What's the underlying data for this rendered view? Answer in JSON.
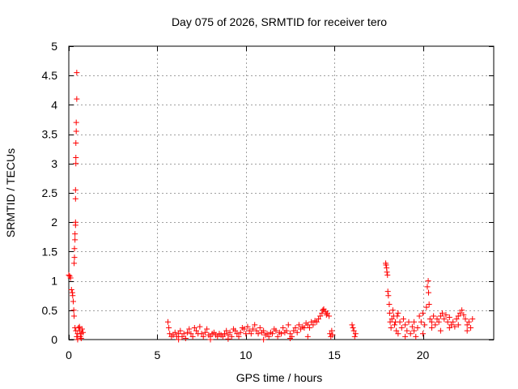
{
  "chart_data": {
    "type": "scatter",
    "title": "Day 075 of 2026, SRMTID for receiver tero",
    "xlabel": "GPS time / hours",
    "ylabel": "SRMTID / TECUs",
    "xlim": [
      0,
      24
    ],
    "ylim": [
      0,
      5
    ],
    "grid": true,
    "marker": "plus",
    "color": "#ff0000",
    "x_ticks": [
      0,
      5,
      10,
      15,
      20
    ],
    "x_tick_labels": [
      "0",
      "5",
      "10",
      "15",
      "20"
    ],
    "y_ticks": [
      0,
      0.5,
      1,
      1.5,
      2,
      2.5,
      3,
      3.5,
      4,
      4.5,
      5
    ],
    "y_tick_labels": [
      "0",
      "0.5",
      "1",
      "1.5",
      "2",
      "2.5",
      "3",
      "3.5",
      "4",
      "4.5",
      "5"
    ],
    "series": [
      {
        "name": "SRMTID",
        "points": [
          [
            0.0,
            1.1
          ],
          [
            0.05,
            1.08
          ],
          [
            0.1,
            1.05
          ],
          [
            0.15,
            0.85
          ],
          [
            0.2,
            0.8
          ],
          [
            0.22,
            0.75
          ],
          [
            0.25,
            0.65
          ],
          [
            0.28,
            0.5
          ],
          [
            0.3,
            0.4
          ],
          [
            0.3,
            1.3
          ],
          [
            0.32,
            1.4
          ],
          [
            0.32,
            1.55
          ],
          [
            0.35,
            1.7
          ],
          [
            0.35,
            1.8
          ],
          [
            0.38,
            1.95
          ],
          [
            0.38,
            2.0
          ],
          [
            0.38,
            2.4
          ],
          [
            0.38,
            2.55
          ],
          [
            0.4,
            3.0
          ],
          [
            0.4,
            3.1
          ],
          [
            0.4,
            3.35
          ],
          [
            0.42,
            3.55
          ],
          [
            0.42,
            3.7
          ],
          [
            0.45,
            4.1
          ],
          [
            0.45,
            4.55
          ],
          [
            0.35,
            0.2
          ],
          [
            0.4,
            0.15
          ],
          [
            0.45,
            0.05
          ],
          [
            0.5,
            0.1
          ],
          [
            0.55,
            0.2
          ],
          [
            0.6,
            0.22
          ],
          [
            0.62,
            0.15
          ],
          [
            0.65,
            0.05
          ],
          [
            0.7,
            0.1
          ],
          [
            0.75,
            0.18
          ],
          [
            0.8,
            0.12
          ],
          [
            0.5,
            0.0
          ],
          [
            0.7,
            0.02
          ],
          [
            5.6,
            0.3
          ],
          [
            5.65,
            0.2
          ],
          [
            5.7,
            0.1
          ],
          [
            5.8,
            0.05
          ],
          [
            5.9,
            0.08
          ],
          [
            6.0,
            0.12
          ],
          [
            6.1,
            0.05
          ],
          [
            6.2,
            0.1
          ],
          [
            6.3,
            0.15
          ],
          [
            6.4,
            0.05
          ],
          [
            6.5,
            0.1
          ],
          [
            6.6,
            0.02
          ],
          [
            6.7,
            0.12
          ],
          [
            6.8,
            0.18
          ],
          [
            6.9,
            0.1
          ],
          [
            7.0,
            0.05
          ],
          [
            7.1,
            0.2
          ],
          [
            7.2,
            0.15
          ],
          [
            7.3,
            0.1
          ],
          [
            7.4,
            0.22
          ],
          [
            7.5,
            0.1
          ],
          [
            7.6,
            0.05
          ],
          [
            7.7,
            0.12
          ],
          [
            7.8,
            0.18
          ],
          [
            7.9,
            0.08
          ],
          [
            8.0,
            0.05
          ],
          [
            8.1,
            0.1
          ],
          [
            8.2,
            0.12
          ],
          [
            8.3,
            0.08
          ],
          [
            8.4,
            0.05
          ],
          [
            8.5,
            0.1
          ],
          [
            8.6,
            0.08
          ],
          [
            8.7,
            0.05
          ],
          [
            8.8,
            0.1
          ],
          [
            8.9,
            0.15
          ],
          [
            9.0,
            0.08
          ],
          [
            9.1,
            0.12
          ],
          [
            9.2,
            0.05
          ],
          [
            9.3,
            0.18
          ],
          [
            9.4,
            0.15
          ],
          [
            9.5,
            0.1
          ],
          [
            9.6,
            0.05
          ],
          [
            9.7,
            0.12
          ],
          [
            9.8,
            0.2
          ],
          [
            9.9,
            0.18
          ],
          [
            10.0,
            0.1
          ],
          [
            10.1,
            0.22
          ],
          [
            10.2,
            0.15
          ],
          [
            10.3,
            0.1
          ],
          [
            10.4,
            0.18
          ],
          [
            10.5,
            0.25
          ],
          [
            10.6,
            0.15
          ],
          [
            10.7,
            0.1
          ],
          [
            10.8,
            0.2
          ],
          [
            10.9,
            0.12
          ],
          [
            11.0,
            0.15
          ],
          [
            11.1,
            0.08
          ],
          [
            11.2,
            0.1
          ],
          [
            11.3,
            0.05
          ],
          [
            11.4,
            0.12
          ],
          [
            11.5,
            0.1
          ],
          [
            11.6,
            0.18
          ],
          [
            11.7,
            0.15
          ],
          [
            11.8,
            0.05
          ],
          [
            11.9,
            0.12
          ],
          [
            12.0,
            0.1
          ],
          [
            12.1,
            0.2
          ],
          [
            12.2,
            0.12
          ],
          [
            12.3,
            0.15
          ],
          [
            12.4,
            0.25
          ],
          [
            12.5,
            0.1
          ],
          [
            12.6,
            0.05
          ],
          [
            12.7,
            0.15
          ],
          [
            12.8,
            0.2
          ],
          [
            12.9,
            0.12
          ],
          [
            13.0,
            0.25
          ],
          [
            13.1,
            0.18
          ],
          [
            13.2,
            0.22
          ],
          [
            13.3,
            0.2
          ],
          [
            13.4,
            0.28
          ],
          [
            13.5,
            0.25
          ],
          [
            13.6,
            0.2
          ],
          [
            13.7,
            0.3
          ],
          [
            13.8,
            0.25
          ],
          [
            13.9,
            0.32
          ],
          [
            14.0,
            0.3
          ],
          [
            14.1,
            0.35
          ],
          [
            14.2,
            0.4
          ],
          [
            14.3,
            0.45
          ],
          [
            14.35,
            0.5
          ],
          [
            14.4,
            0.52
          ],
          [
            14.5,
            0.48
          ],
          [
            14.55,
            0.42
          ],
          [
            14.6,
            0.45
          ],
          [
            14.7,
            0.4
          ],
          [
            14.75,
            0.1
          ],
          [
            14.8,
            0.05
          ],
          [
            14.85,
            0.15
          ],
          [
            14.9,
            0.08
          ],
          [
            6.2,
            0.0
          ],
          [
            8.0,
            0.0
          ],
          [
            9.0,
            0.01
          ],
          [
            11.0,
            0.0
          ],
          [
            12.5,
            0.02
          ],
          [
            13.5,
            0.05
          ],
          [
            16.0,
            0.25
          ],
          [
            16.05,
            0.2
          ],
          [
            16.1,
            0.15
          ],
          [
            16.15,
            0.05
          ],
          [
            16.2,
            0.1
          ],
          [
            17.9,
            1.3
          ],
          [
            17.92,
            1.27
          ],
          [
            17.95,
            1.22
          ],
          [
            17.97,
            1.15
          ],
          [
            18.0,
            1.1
          ],
          [
            18.02,
            0.82
          ],
          [
            18.05,
            0.75
          ],
          [
            18.1,
            0.6
          ],
          [
            18.12,
            0.45
          ],
          [
            18.15,
            0.3
          ],
          [
            18.2,
            0.2
          ],
          [
            18.25,
            0.35
          ],
          [
            18.3,
            0.5
          ],
          [
            18.35,
            0.4
          ],
          [
            18.4,
            0.25
          ],
          [
            18.45,
            0.3
          ],
          [
            18.5,
            0.15
          ],
          [
            18.55,
            0.4
          ],
          [
            18.6,
            0.45
          ],
          [
            18.7,
            0.3
          ],
          [
            18.8,
            0.2
          ],
          [
            18.9,
            0.35
          ],
          [
            19.0,
            0.25
          ],
          [
            19.1,
            0.15
          ],
          [
            19.2,
            0.3
          ],
          [
            19.3,
            0.1
          ],
          [
            19.4,
            0.22
          ],
          [
            19.5,
            0.3
          ],
          [
            19.6,
            0.05
          ],
          [
            19.7,
            0.2
          ],
          [
            19.8,
            0.4
          ],
          [
            19.9,
            0.3
          ],
          [
            20.0,
            0.45
          ],
          [
            20.1,
            0.25
          ],
          [
            20.2,
            0.55
          ],
          [
            20.25,
            0.9
          ],
          [
            20.3,
            1.0
          ],
          [
            20.32,
            0.8
          ],
          [
            20.35,
            0.6
          ],
          [
            20.4,
            0.35
          ],
          [
            20.5,
            0.3
          ],
          [
            20.6,
            0.4
          ],
          [
            20.7,
            0.25
          ],
          [
            20.8,
            0.35
          ],
          [
            20.9,
            0.3
          ],
          [
            21.0,
            0.4
          ],
          [
            21.1,
            0.45
          ],
          [
            21.2,
            0.35
          ],
          [
            21.3,
            0.42
          ],
          [
            21.4,
            0.3
          ],
          [
            21.5,
            0.38
          ],
          [
            21.6,
            0.25
          ],
          [
            21.7,
            0.3
          ],
          [
            21.8,
            0.22
          ],
          [
            21.9,
            0.35
          ],
          [
            22.0,
            0.4
          ],
          [
            22.1,
            0.45
          ],
          [
            22.2,
            0.5
          ],
          [
            22.3,
            0.42
          ],
          [
            22.4,
            0.35
          ],
          [
            22.5,
            0.25
          ],
          [
            22.6,
            0.3
          ],
          [
            22.7,
            0.2
          ],
          [
            22.8,
            0.35
          ],
          [
            18.6,
            0.1
          ],
          [
            19.0,
            0.05
          ],
          [
            19.5,
            0.15
          ],
          [
            20.0,
            0.1
          ],
          [
            20.5,
            0.2
          ],
          [
            21.0,
            0.15
          ],
          [
            21.5,
            0.2
          ],
          [
            22.0,
            0.25
          ],
          [
            22.5,
            0.15
          ]
        ]
      }
    ]
  }
}
